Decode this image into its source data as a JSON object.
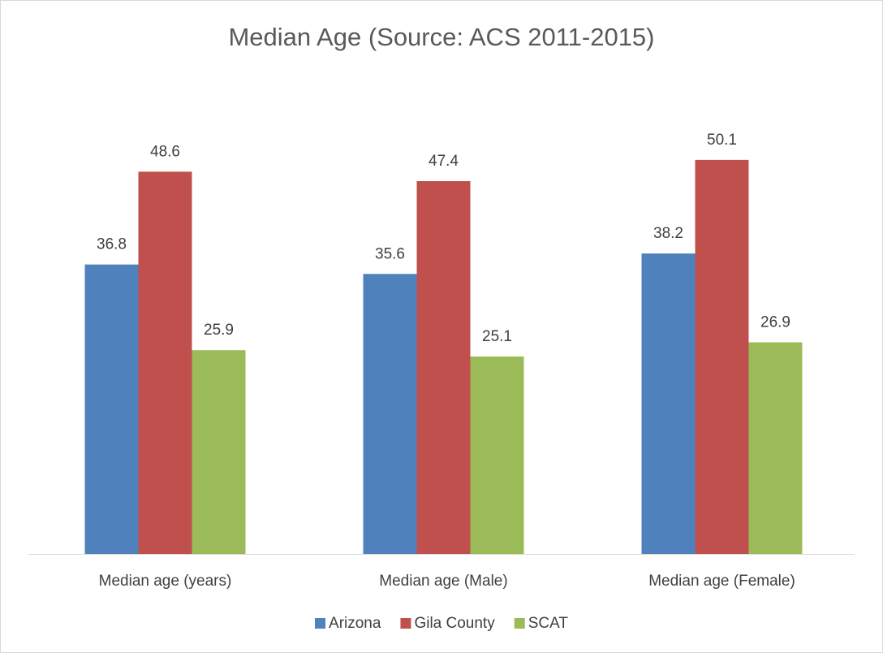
{
  "chart_data": {
    "type": "bar",
    "title": "Median Age (Source: ACS 2011-2015)",
    "categories": [
      "Median age (years)",
      "Median age (Male)",
      "Median age (Female)"
    ],
    "series": [
      {
        "name": "Arizona",
        "color": "#4f81bd",
        "values": [
          36.8,
          35.6,
          38.2
        ]
      },
      {
        "name": "Gila County",
        "color": "#c0504d",
        "values": [
          48.6,
          47.4,
          50.1
        ]
      },
      {
        "name": "SCAT",
        "color": "#9bbb59",
        "values": [
          25.9,
          25.1,
          26.9
        ]
      }
    ],
    "ylim": [
      0,
      60
    ],
    "legend": "bottom"
  }
}
